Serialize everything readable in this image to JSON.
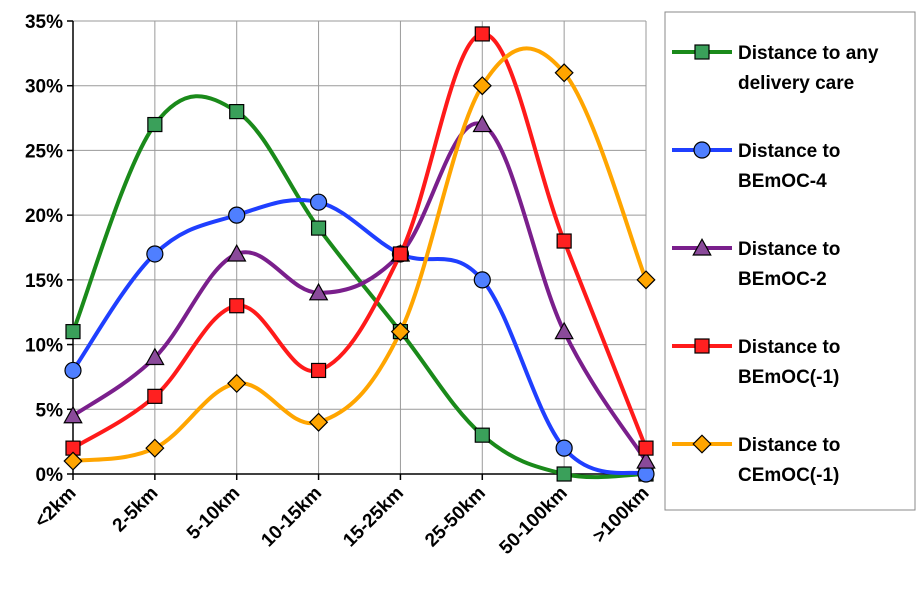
{
  "chart_data": {
    "type": "line",
    "categories": [
      "<2km",
      "2-5km",
      "5-10km",
      "10-15km",
      "15-25km",
      "25-50km",
      "50-100km",
      ">100km"
    ],
    "ylim": [
      0,
      35
    ],
    "yticks": [
      "0%",
      "5%",
      "10%",
      "15%",
      "20%",
      "25%",
      "30%",
      "35%"
    ],
    "grid": true,
    "smooth": true,
    "legend_position": "right",
    "series": [
      {
        "name_lines": [
          "Distance to any",
          "delivery care"
        ],
        "color": "#1a8a1a",
        "marker": "square",
        "marker_fill": "#3aa05a",
        "values": [
          11,
          27,
          28,
          19,
          11,
          3,
          0,
          0
        ]
      },
      {
        "name_lines": [
          "Distance to",
          "BEmOC-4"
        ],
        "color": "#1f3fff",
        "marker": "circle",
        "marker_fill": "#4f7fff",
        "values": [
          8,
          17,
          20,
          21,
          17,
          15,
          2,
          0
        ]
      },
      {
        "name_lines": [
          "Distance to",
          "BEmOC-2"
        ],
        "color": "#7a1f8c",
        "marker": "triangle",
        "marker_fill": "#8a4a9a",
        "values": [
          4.5,
          9,
          17,
          14,
          17,
          27,
          11,
          1
        ]
      },
      {
        "name_lines": [
          "Distance to",
          "BEmOC(-1)"
        ],
        "color": "#ff1a1a",
        "marker": "square",
        "marker_fill": "#ff2020",
        "values": [
          2,
          6,
          13,
          8,
          17,
          34,
          18,
          2
        ]
      },
      {
        "name_lines": [
          "Distance to",
          "CEmOC(-1)"
        ],
        "color": "#ffa500",
        "marker": "diamond",
        "marker_fill": "#ffa500",
        "values": [
          1,
          2,
          7,
          4,
          11,
          30,
          31,
          15
        ]
      }
    ]
  }
}
